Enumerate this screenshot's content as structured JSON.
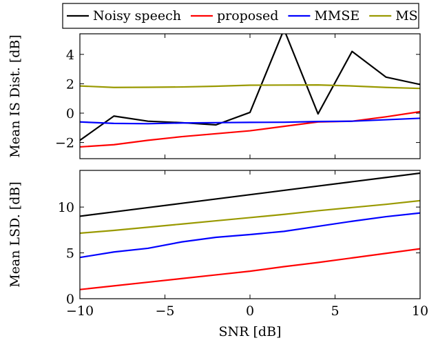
{
  "chart_data": [
    {
      "type": "line",
      "ylabel": "Mean IS Dist. [dB]",
      "xlim": [
        -10,
        10
      ],
      "ylim": [
        -3.1,
        5.4
      ],
      "yticks": [
        -2,
        0,
        2,
        4
      ],
      "x": [
        -10,
        -8,
        -6,
        -4,
        -2,
        0,
        2,
        4,
        6,
        8,
        10
      ],
      "series": [
        {
          "name": "Noisy speech",
          "color": "#000000",
          "values": [
            -1.85,
            -0.2,
            -0.55,
            -0.65,
            -0.8,
            0.05,
            5.7,
            -0.05,
            4.2,
            2.45,
            1.95
          ]
        },
        {
          "name": "proposed",
          "color": "#ff0000",
          "values": [
            -2.3,
            -2.15,
            -1.85,
            -1.6,
            -1.4,
            -1.2,
            -0.9,
            -0.6,
            -0.55,
            -0.25,
            0.1
          ]
        },
        {
          "name": "MMSE",
          "color": "#0000ff",
          "values": [
            -0.6,
            -0.7,
            -0.72,
            -0.67,
            -0.65,
            -0.63,
            -0.62,
            -0.57,
            -0.55,
            -0.45,
            -0.35
          ]
        },
        {
          "name": "MS",
          "color": "#999900",
          "values": [
            1.85,
            1.75,
            1.76,
            1.78,
            1.83,
            1.9,
            1.91,
            1.92,
            1.85,
            1.75,
            1.68
          ]
        }
      ],
      "legend": "top-center, outside"
    },
    {
      "type": "line",
      "xlabel": "SNR [dB]",
      "ylabel": "Mean LSD. [dB]",
      "xlim": [
        -10,
        10
      ],
      "ylim": [
        0,
        14
      ],
      "yticks": [
        0,
        5,
        10
      ],
      "xticks": [
        -10,
        -5,
        0,
        5,
        10
      ],
      "x": [
        -10,
        -8,
        -6,
        -4,
        -2,
        0,
        2,
        4,
        6,
        8,
        10
      ],
      "series": [
        {
          "name": "Noisy speech",
          "color": "#000000",
          "values": [
            9.0,
            9.47,
            9.94,
            10.41,
            10.88,
            11.35,
            11.82,
            12.29,
            12.76,
            13.23,
            13.7
          ]
        },
        {
          "name": "proposed",
          "color": "#ff0000",
          "values": [
            1.0,
            1.4,
            1.8,
            2.2,
            2.6,
            3.0,
            3.5,
            3.95,
            4.45,
            4.95,
            5.45
          ]
        },
        {
          "name": "MMSE",
          "color": "#0000ff",
          "values": [
            4.5,
            5.1,
            5.5,
            6.2,
            6.7,
            7.0,
            7.35,
            7.9,
            8.45,
            8.95,
            9.35
          ]
        },
        {
          "name": "MS",
          "color": "#999900",
          "values": [
            7.15,
            7.45,
            7.8,
            8.15,
            8.5,
            8.85,
            9.2,
            9.6,
            9.95,
            10.3,
            10.7
          ]
        }
      ]
    }
  ]
}
